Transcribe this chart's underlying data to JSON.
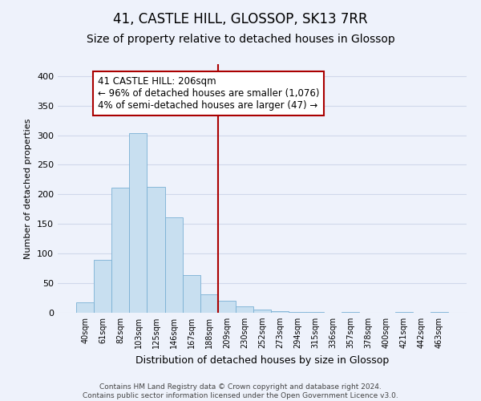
{
  "title": "41, CASTLE HILL, GLOSSOP, SK13 7RR",
  "subtitle": "Size of property relative to detached houses in Glossop",
  "xlabel": "Distribution of detached houses by size in Glossop",
  "ylabel": "Number of detached properties",
  "bin_labels": [
    "40sqm",
    "61sqm",
    "82sqm",
    "103sqm",
    "125sqm",
    "146sqm",
    "167sqm",
    "188sqm",
    "209sqm",
    "230sqm",
    "252sqm",
    "273sqm",
    "294sqm",
    "315sqm",
    "336sqm",
    "357sqm",
    "378sqm",
    "400sqm",
    "421sqm",
    "442sqm",
    "463sqm"
  ],
  "bar_heights": [
    17,
    90,
    211,
    304,
    213,
    161,
    64,
    31,
    20,
    11,
    5,
    3,
    1,
    1,
    0,
    1,
    0,
    0,
    1,
    0,
    1
  ],
  "bar_color": "#c8dff0",
  "bar_edge_color": "#7ab0d4",
  "vline_color": "#aa0000",
  "annotation_text": "41 CASTLE HILL: 206sqm\n← 96% of detached houses are smaller (1,076)\n4% of semi-detached houses are larger (47) →",
  "annotation_box_color": "#ffffff",
  "annotation_box_edge": "#aa0000",
  "ylim": [
    0,
    420
  ],
  "yticks": [
    0,
    50,
    100,
    150,
    200,
    250,
    300,
    350,
    400
  ],
  "background_color": "#eef2fb",
  "grid_color": "#d0d8ea",
  "footer_text": "Contains HM Land Registry data © Crown copyright and database right 2024.\nContains public sector information licensed under the Open Government Licence v3.0.",
  "title_fontsize": 12,
  "subtitle_fontsize": 10,
  "xlabel_fontsize": 9,
  "ylabel_fontsize": 8,
  "annotation_fontsize": 8.5,
  "footer_fontsize": 6.5
}
